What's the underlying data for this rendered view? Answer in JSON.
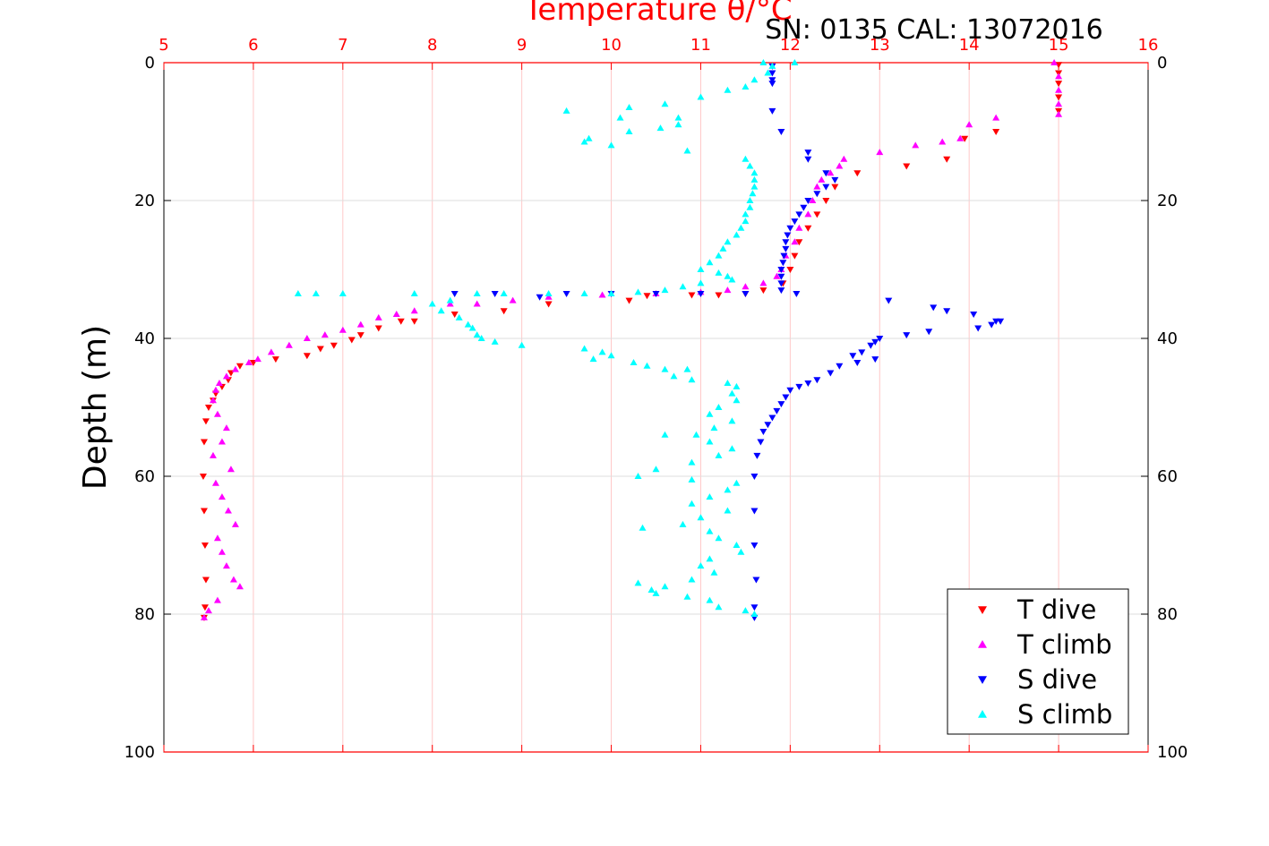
{
  "chart_data": {
    "type": "scatter",
    "title": "Temperature θ/°C",
    "subtitle": "SN: 0135  CAL: 13072016",
    "xlabel": "Temperature θ/°C",
    "ylabel": "Depth (m)",
    "xlim": [
      5,
      16
    ],
    "ylim": [
      0,
      100
    ],
    "y_reversed": true,
    "x_axis_position": "top",
    "xticks": [
      "5",
      "6",
      "7",
      "8",
      "9",
      "10",
      "11",
      "12",
      "13",
      "14",
      "15",
      "16"
    ],
    "yticks": [
      "0",
      "20",
      "40",
      "60",
      "80",
      "100"
    ],
    "grid": true,
    "legend_position": "bottom-right",
    "colors": {
      "axis_top": "#ff0000",
      "grid_x": "#ffc8c8",
      "grid_y": "#dddddd"
    },
    "series": [
      {
        "name": "T dive",
        "marker": "triangle-down",
        "color": "#ff0000",
        "points": [
          [
            15.0,
            0.3
          ],
          [
            15.0,
            1.5
          ],
          [
            15.0,
            3.0
          ],
          [
            15.0,
            5.0
          ],
          [
            15.0,
            7.0
          ],
          [
            14.3,
            10.0
          ],
          [
            13.95,
            11.0
          ],
          [
            13.75,
            14.0
          ],
          [
            13.3,
            15.0
          ],
          [
            12.75,
            16.0
          ],
          [
            12.5,
            18.0
          ],
          [
            12.4,
            20.0
          ],
          [
            12.3,
            22.0
          ],
          [
            12.2,
            24.0
          ],
          [
            12.1,
            26.0
          ],
          [
            12.05,
            28.0
          ],
          [
            12.0,
            30.0
          ],
          [
            11.92,
            32.0
          ],
          [
            11.7,
            33.0
          ],
          [
            11.5,
            33.5
          ],
          [
            11.2,
            33.7
          ],
          [
            10.9,
            33.7
          ],
          [
            10.4,
            33.8
          ],
          [
            10.2,
            34.5
          ],
          [
            9.3,
            35.0
          ],
          [
            8.8,
            36.0
          ],
          [
            8.25,
            36.5
          ],
          [
            7.8,
            37.5
          ],
          [
            7.65,
            37.5
          ],
          [
            7.4,
            38.5
          ],
          [
            7.2,
            39.5
          ],
          [
            7.1,
            40.2
          ],
          [
            6.9,
            41.0
          ],
          [
            6.75,
            41.5
          ],
          [
            6.6,
            42.5
          ],
          [
            6.25,
            43.0
          ],
          [
            6.0,
            43.5
          ],
          [
            5.85,
            44.0
          ],
          [
            5.75,
            45.0
          ],
          [
            5.72,
            46.0
          ],
          [
            5.65,
            47.0
          ],
          [
            5.58,
            48.0
          ],
          [
            5.55,
            49.0
          ],
          [
            5.5,
            50.0
          ],
          [
            5.47,
            52.0
          ],
          [
            5.45,
            55.0
          ],
          [
            5.44,
            60.0
          ],
          [
            5.45,
            65.0
          ],
          [
            5.46,
            70.0
          ],
          [
            5.47,
            75.0
          ],
          [
            5.46,
            79.0
          ],
          [
            5.45,
            80.5
          ]
        ]
      },
      {
        "name": "T climb",
        "marker": "triangle-up",
        "color": "#ff00ff",
        "points": [
          [
            14.95,
            0.0
          ],
          [
            15.0,
            2.0
          ],
          [
            15.0,
            4.0
          ],
          [
            15.0,
            6.0
          ],
          [
            15.0,
            7.5
          ],
          [
            14.3,
            8.0
          ],
          [
            14.0,
            9.0
          ],
          [
            13.9,
            11.0
          ],
          [
            13.7,
            11.5
          ],
          [
            13.4,
            12.0
          ],
          [
            13.0,
            13.0
          ],
          [
            12.6,
            14.0
          ],
          [
            12.55,
            15.0
          ],
          [
            12.45,
            16.0
          ],
          [
            12.35,
            17.0
          ],
          [
            12.3,
            18.0
          ],
          [
            12.25,
            20.0
          ],
          [
            12.2,
            22.0
          ],
          [
            12.1,
            24.0
          ],
          [
            12.05,
            26.0
          ],
          [
            11.95,
            28.0
          ],
          [
            11.9,
            30.0
          ],
          [
            11.85,
            31.0
          ],
          [
            11.7,
            32.0
          ],
          [
            11.5,
            32.5
          ],
          [
            11.3,
            33.0
          ],
          [
            11.0,
            33.3
          ],
          [
            10.5,
            33.5
          ],
          [
            9.9,
            33.7
          ],
          [
            9.3,
            34.0
          ],
          [
            8.9,
            34.5
          ],
          [
            8.5,
            35.0
          ],
          [
            8.2,
            35.0
          ],
          [
            7.8,
            36.0
          ],
          [
            7.6,
            36.5
          ],
          [
            7.4,
            37.0
          ],
          [
            7.2,
            38.0
          ],
          [
            7.0,
            38.8
          ],
          [
            6.8,
            39.5
          ],
          [
            6.6,
            40.0
          ],
          [
            6.4,
            41.0
          ],
          [
            6.2,
            42.0
          ],
          [
            6.05,
            43.0
          ],
          [
            5.95,
            43.5
          ],
          [
            5.8,
            44.5
          ],
          [
            5.7,
            45.5
          ],
          [
            5.62,
            46.5
          ],
          [
            5.58,
            47.5
          ],
          [
            5.55,
            49.0
          ],
          [
            5.6,
            51.0
          ],
          [
            5.7,
            53.0
          ],
          [
            5.65,
            55.0
          ],
          [
            5.55,
            57.0
          ],
          [
            5.75,
            59.0
          ],
          [
            5.58,
            61.0
          ],
          [
            5.65,
            63.0
          ],
          [
            5.72,
            65.0
          ],
          [
            5.8,
            67.0
          ],
          [
            5.6,
            69.0
          ],
          [
            5.65,
            71.0
          ],
          [
            5.7,
            73.0
          ],
          [
            5.78,
            75.0
          ],
          [
            5.85,
            76.0
          ],
          [
            5.6,
            78.0
          ],
          [
            5.5,
            79.5
          ],
          [
            5.45,
            80.5
          ]
        ]
      },
      {
        "name": "S dive",
        "marker": "triangle-down",
        "color": "#0000ff",
        "points": [
          [
            11.8,
            0.5
          ],
          [
            11.8,
            1.5
          ],
          [
            11.8,
            2.5
          ],
          [
            11.8,
            3.0
          ],
          [
            11.8,
            7.0
          ],
          [
            11.9,
            10.0
          ],
          [
            12.2,
            13.0
          ],
          [
            12.2,
            14.0
          ],
          [
            12.4,
            16.0
          ],
          [
            12.5,
            17.0
          ],
          [
            12.4,
            18.0
          ],
          [
            12.3,
            19.0
          ],
          [
            12.2,
            20.0
          ],
          [
            12.15,
            21.0
          ],
          [
            12.1,
            22.0
          ],
          [
            12.05,
            23.0
          ],
          [
            12.0,
            24.0
          ],
          [
            11.97,
            25.0
          ],
          [
            11.95,
            26.0
          ],
          [
            11.95,
            27.0
          ],
          [
            11.93,
            28.0
          ],
          [
            11.92,
            29.0
          ],
          [
            11.9,
            30.0
          ],
          [
            11.9,
            31.0
          ],
          [
            11.9,
            32.0
          ],
          [
            11.9,
            33.0
          ],
          [
            12.07,
            33.5
          ],
          [
            11.5,
            33.5
          ],
          [
            11.0,
            33.5
          ],
          [
            10.5,
            33.5
          ],
          [
            10.0,
            33.5
          ],
          [
            9.5,
            33.5
          ],
          [
            8.25,
            33.5
          ],
          [
            8.7,
            33.5
          ],
          [
            9.2,
            34.0
          ],
          [
            13.1,
            34.5
          ],
          [
            13.6,
            35.5
          ],
          [
            13.75,
            36.0
          ],
          [
            14.05,
            36.5
          ],
          [
            14.3,
            37.5
          ],
          [
            14.35,
            37.5
          ],
          [
            14.25,
            38.0
          ],
          [
            14.1,
            38.5
          ],
          [
            13.55,
            39.0
          ],
          [
            13.3,
            39.5
          ],
          [
            13.0,
            40.0
          ],
          [
            12.95,
            40.5
          ],
          [
            12.9,
            41.0
          ],
          [
            12.8,
            42.0
          ],
          [
            12.7,
            42.5
          ],
          [
            12.95,
            43.0
          ],
          [
            12.75,
            43.5
          ],
          [
            12.55,
            44.0
          ],
          [
            12.45,
            45.0
          ],
          [
            12.3,
            46.0
          ],
          [
            12.2,
            46.5
          ],
          [
            12.1,
            47.0
          ],
          [
            12.0,
            47.5
          ],
          [
            11.95,
            48.5
          ],
          [
            11.9,
            49.5
          ],
          [
            11.85,
            50.5
          ],
          [
            11.8,
            51.5
          ],
          [
            11.75,
            52.5
          ],
          [
            11.7,
            53.5
          ],
          [
            11.67,
            55.0
          ],
          [
            11.63,
            57.0
          ],
          [
            11.6,
            60.0
          ],
          [
            11.6,
            65.0
          ],
          [
            11.6,
            70.0
          ],
          [
            11.62,
            75.0
          ],
          [
            11.6,
            79.0
          ],
          [
            11.6,
            80.5
          ]
        ]
      },
      {
        "name": "S climb",
        "marker": "triangle-up",
        "color": "#00ffff",
        "points": [
          [
            11.7,
            0.0
          ],
          [
            11.8,
            0.5
          ],
          [
            12.05,
            0.0
          ],
          [
            11.75,
            1.5
          ],
          [
            11.6,
            2.5
          ],
          [
            11.5,
            3.5
          ],
          [
            11.3,
            4.0
          ],
          [
            11.0,
            5.0
          ],
          [
            10.6,
            6.0
          ],
          [
            10.2,
            6.5
          ],
          [
            9.5,
            7.0
          ],
          [
            10.1,
            8.0
          ],
          [
            10.75,
            8.0
          ],
          [
            10.55,
            9.5
          ],
          [
            10.75,
            9.0
          ],
          [
            10.2,
            10.0
          ],
          [
            9.75,
            11.0
          ],
          [
            9.7,
            11.5
          ],
          [
            10.0,
            12.0
          ],
          [
            10.85,
            12.8
          ],
          [
            11.5,
            14.0
          ],
          [
            11.55,
            15.0
          ],
          [
            11.6,
            16.0
          ],
          [
            11.6,
            17.0
          ],
          [
            11.6,
            18.0
          ],
          [
            11.58,
            19.0
          ],
          [
            11.55,
            20.0
          ],
          [
            11.55,
            21.0
          ],
          [
            11.5,
            22.0
          ],
          [
            11.5,
            23.0
          ],
          [
            11.45,
            24.0
          ],
          [
            11.4,
            25.0
          ],
          [
            11.3,
            26.0
          ],
          [
            11.25,
            27.0
          ],
          [
            11.2,
            28.0
          ],
          [
            11.1,
            29.0
          ],
          [
            11.0,
            30.0
          ],
          [
            11.2,
            30.5
          ],
          [
            11.3,
            31.0
          ],
          [
            11.35,
            31.5
          ],
          [
            11.0,
            32.0
          ],
          [
            10.8,
            32.5
          ],
          [
            10.6,
            33.0
          ],
          [
            10.3,
            33.3
          ],
          [
            10.0,
            33.5
          ],
          [
            9.7,
            33.5
          ],
          [
            9.3,
            33.5
          ],
          [
            8.8,
            33.5
          ],
          [
            8.5,
            33.5
          ],
          [
            7.0,
            33.5
          ],
          [
            6.7,
            33.5
          ],
          [
            6.5,
            33.5
          ],
          [
            7.8,
            33.5
          ],
          [
            8.2,
            34.5
          ],
          [
            8.0,
            35.0
          ],
          [
            8.1,
            36.0
          ],
          [
            8.3,
            37.0
          ],
          [
            8.4,
            38.0
          ],
          [
            8.45,
            38.5
          ],
          [
            8.5,
            39.5
          ],
          [
            8.55,
            40.0
          ],
          [
            8.7,
            40.5
          ],
          [
            9.0,
            41.0
          ],
          [
            9.7,
            41.5
          ],
          [
            9.9,
            42.0
          ],
          [
            9.8,
            43.0
          ],
          [
            10.0,
            42.5
          ],
          [
            10.25,
            43.5
          ],
          [
            10.4,
            44.0
          ],
          [
            10.6,
            44.5
          ],
          [
            10.85,
            44.5
          ],
          [
            10.7,
            45.5
          ],
          [
            10.9,
            46.0
          ],
          [
            11.3,
            46.5
          ],
          [
            11.4,
            47.0
          ],
          [
            11.35,
            48.0
          ],
          [
            11.4,
            49.0
          ],
          [
            11.2,
            50.0
          ],
          [
            11.1,
            51.0
          ],
          [
            11.35,
            52.0
          ],
          [
            11.15,
            53.0
          ],
          [
            10.6,
            54.0
          ],
          [
            10.95,
            54.0
          ],
          [
            11.1,
            55.0
          ],
          [
            11.35,
            56.0
          ],
          [
            11.2,
            57.0
          ],
          [
            10.9,
            58.0
          ],
          [
            10.5,
            59.0
          ],
          [
            10.3,
            60.0
          ],
          [
            10.9,
            60.5
          ],
          [
            11.4,
            61.0
          ],
          [
            11.3,
            62.0
          ],
          [
            11.1,
            63.0
          ],
          [
            10.9,
            64.0
          ],
          [
            11.3,
            65.0
          ],
          [
            11.0,
            66.0
          ],
          [
            10.8,
            67.0
          ],
          [
            10.35,
            67.5
          ],
          [
            11.1,
            68.0
          ],
          [
            11.2,
            69.0
          ],
          [
            11.4,
            70.0
          ],
          [
            11.45,
            71.0
          ],
          [
            11.1,
            72.0
          ],
          [
            11.0,
            73.0
          ],
          [
            11.15,
            74.0
          ],
          [
            10.9,
            75.0
          ],
          [
            10.3,
            75.5
          ],
          [
            10.6,
            76.0
          ],
          [
            10.45,
            76.5
          ],
          [
            10.5,
            77.0
          ],
          [
            10.85,
            77.5
          ],
          [
            11.1,
            78.0
          ],
          [
            11.2,
            79.0
          ],
          [
            11.5,
            79.5
          ],
          [
            11.6,
            80.0
          ]
        ]
      }
    ]
  }
}
